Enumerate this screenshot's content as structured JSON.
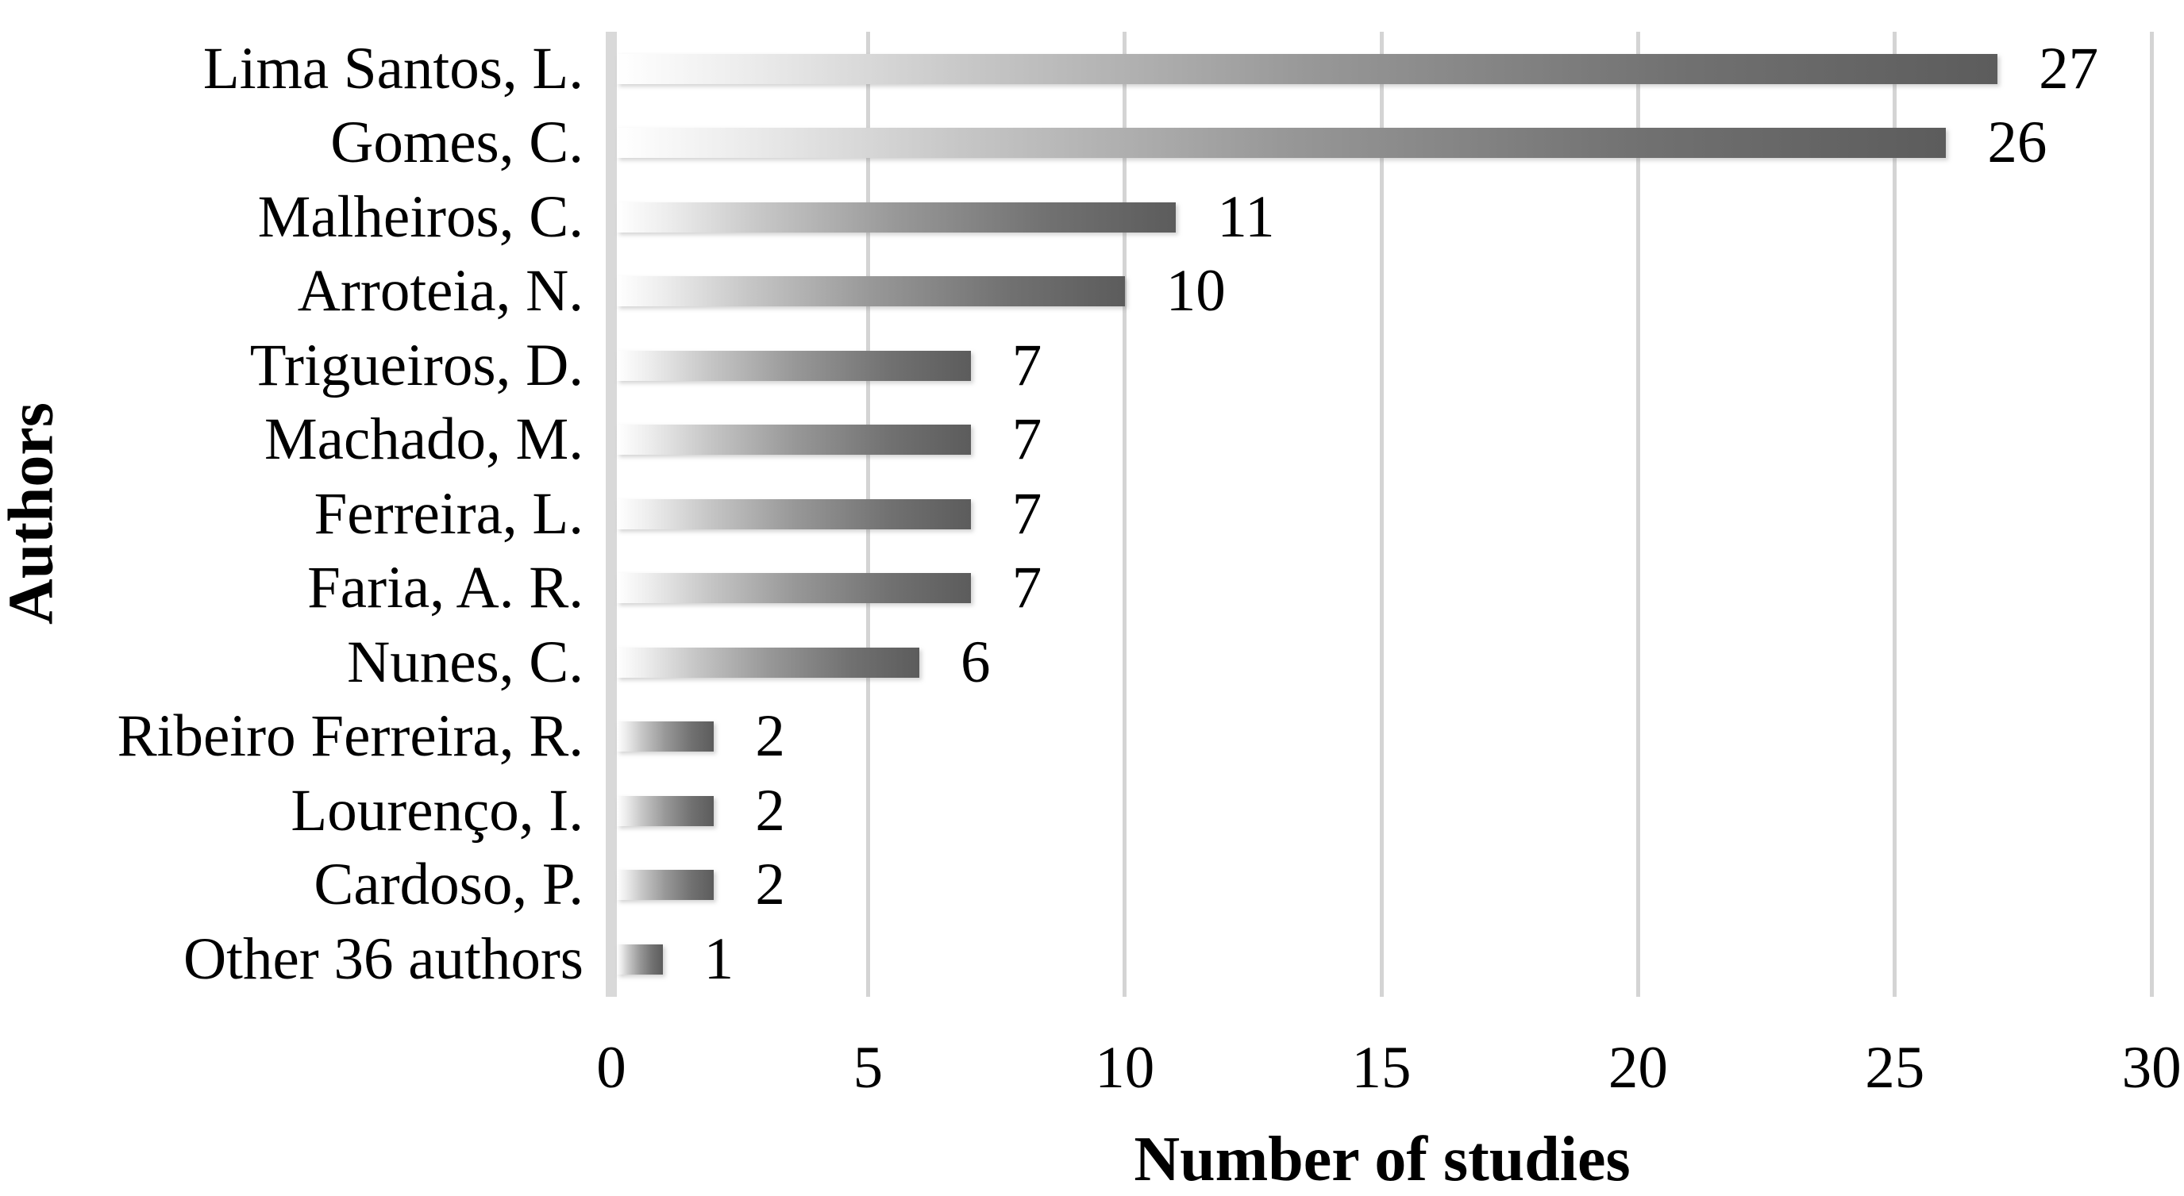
{
  "chart_data": {
    "type": "bar",
    "orientation": "horizontal",
    "title": "",
    "xlabel": "Number of studies",
    "ylabel": "Authors",
    "categories": [
      "Lima Santos, L.",
      "Gomes, C.",
      "Malheiros, C.",
      "Arroteia, N.",
      "Trigueiros, D.",
      "Machado, M.",
      "Ferreira, L.",
      "Faria, A. R.",
      "Nunes, C.",
      "Ribeiro Ferreira, R.",
      "Lourenço, I.",
      "Cardoso, P.",
      "Other 36 authors"
    ],
    "values": [
      27,
      26,
      11,
      10,
      7,
      7,
      7,
      7,
      6,
      2,
      2,
      2,
      1
    ],
    "data_labels": [
      "27",
      "26",
      "11",
      "10",
      "7",
      "7",
      "7",
      "7",
      "6",
      "2",
      "2",
      "2",
      "1"
    ],
    "xlim": [
      0,
      30
    ],
    "xticks": [
      0,
      5,
      10,
      15,
      20,
      25,
      30
    ],
    "xtick_labels": [
      "0",
      "5",
      "10",
      "15",
      "20",
      "25",
      "30"
    ],
    "grid": "vertical gridlines at each x tick",
    "legend": "none",
    "colors": {
      "bar_gradient_start": "#ffffff",
      "bar_gradient_end": "#5c5c5c",
      "gridline": "#d4d4d4",
      "axis_line": "#d9d9d9",
      "text": "#000000",
      "background": "#ffffff"
    }
  }
}
